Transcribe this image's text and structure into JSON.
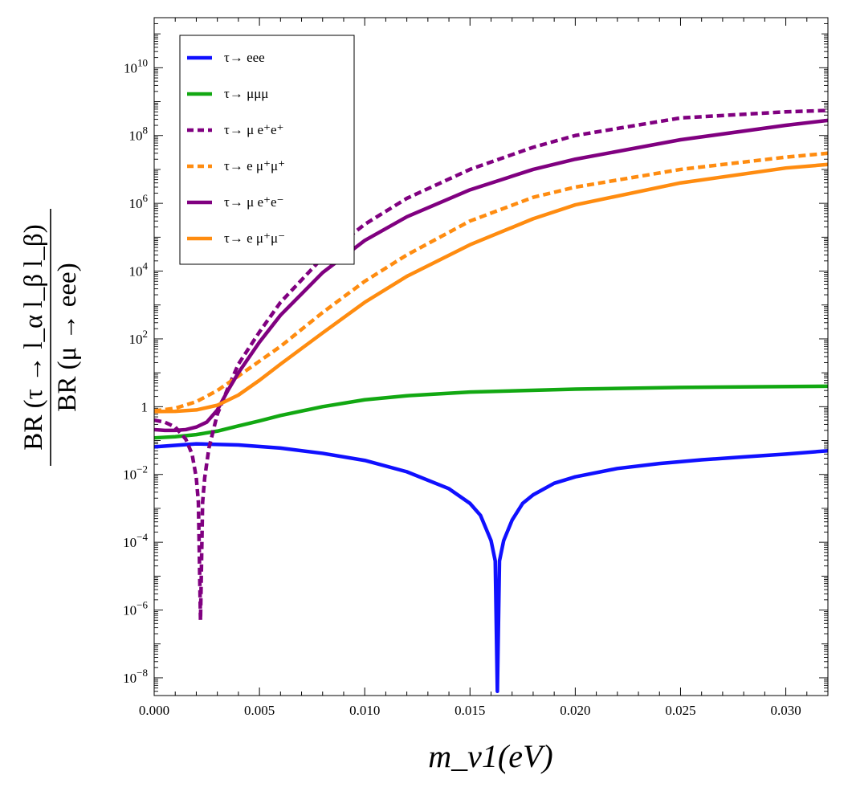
{
  "chart_data": {
    "type": "line",
    "xlabel": "m_ν1(eV)",
    "ylabel_numerator": "BR (τ → l_α l_β l_β)",
    "ylabel_denominator": "BR (μ → eee)",
    "xlim": [
      0,
      0.032
    ],
    "ylog": true,
    "ylim": [
      3e-09,
      300000000000.0
    ],
    "grid": false,
    "legend_position": "top-left",
    "x_ticks": [
      {
        "value": 0.0,
        "label": "0.000"
      },
      {
        "value": 0.005,
        "label": "0.005"
      },
      {
        "value": 0.01,
        "label": "0.010"
      },
      {
        "value": 0.015,
        "label": "0.015"
      },
      {
        "value": 0.02,
        "label": "0.020"
      },
      {
        "value": 0.025,
        "label": "0.025"
      },
      {
        "value": 0.03,
        "label": "0.030"
      }
    ],
    "y_ticks": [
      {
        "value": 1e-08,
        "base": "10",
        "exp": "−8"
      },
      {
        "value": 1e-06,
        "base": "10",
        "exp": "−6"
      },
      {
        "value": 0.0001,
        "base": "10",
        "exp": "−4"
      },
      {
        "value": 0.01,
        "base": "10",
        "exp": "−2"
      },
      {
        "value": 1,
        "base": "1",
        "exp": ""
      },
      {
        "value": 100.0,
        "base": "10",
        "exp": "2"
      },
      {
        "value": 10000.0,
        "base": "10",
        "exp": "4"
      },
      {
        "value": 1000000.0,
        "base": "10",
        "exp": "6"
      },
      {
        "value": 100000000.0,
        "base": "10",
        "exp": "8"
      },
      {
        "value": 10000000000.0,
        "base": "10",
        "exp": "10"
      }
    ],
    "series": [
      {
        "name": "τ→ eee",
        "color": "#1010ff",
        "dash": "solid",
        "x": [
          0,
          0.002,
          0.004,
          0.006,
          0.008,
          0.01,
          0.012,
          0.014,
          0.015,
          0.0155,
          0.016,
          0.0162,
          0.0163,
          0.0164,
          0.0166,
          0.017,
          0.0175,
          0.018,
          0.019,
          0.02,
          0.022,
          0.024,
          0.026,
          0.028,
          0.03,
          0.032
        ],
        "y": [
          0.065,
          0.08,
          0.074,
          0.06,
          0.042,
          0.026,
          0.012,
          0.0038,
          0.0014,
          0.00062,
          0.000112,
          2.8e-05,
          4e-09,
          2.8e-05,
          0.000112,
          0.00045,
          0.0014,
          0.0025,
          0.0055,
          0.0085,
          0.015,
          0.021,
          0.027,
          0.033,
          0.04,
          0.05
        ]
      },
      {
        "name": "τ→ μμμ",
        "color": "#12a812",
        "dash": "solid",
        "x": [
          0,
          0.001,
          0.002,
          0.003,
          0.004,
          0.005,
          0.006,
          0.008,
          0.01,
          0.012,
          0.015,
          0.02,
          0.025,
          0.032
        ],
        "y": [
          0.12,
          0.13,
          0.15,
          0.19,
          0.27,
          0.38,
          0.55,
          1.0,
          1.6,
          2.1,
          2.7,
          3.3,
          3.7,
          4.0
        ]
      },
      {
        "name": "τ→ μ e⁺e⁺",
        "color": "#800080",
        "dash": "dashed",
        "x": [
          0,
          0.0005,
          0.001,
          0.0015,
          0.0018,
          0.002,
          0.0021,
          0.0022,
          0.0023,
          0.0024,
          0.0026,
          0.003,
          0.0035,
          0.004,
          0.005,
          0.006,
          0.008,
          0.01,
          0.012,
          0.015,
          0.018,
          0.02,
          0.025,
          0.03,
          0.032
        ],
        "y": [
          0.4,
          0.35,
          0.25,
          0.11,
          0.04,
          0.008,
          0.0015,
          5e-07,
          0.0015,
          0.008,
          0.06,
          0.6,
          3.5,
          18,
          160,
          1200,
          25000,
          240000,
          1400000.0,
          10000000.0,
          45000000.0,
          100000000.0,
          330000000.0,
          500000000.0,
          550000000.0
        ]
      },
      {
        "name": "τ→ e μ⁺μ⁺",
        "color": "#ff8c10",
        "dash": "dashed",
        "x": [
          0,
          0.001,
          0.002,
          0.003,
          0.004,
          0.005,
          0.006,
          0.008,
          0.01,
          0.012,
          0.015,
          0.018,
          0.02,
          0.025,
          0.03,
          0.032
        ],
        "y": [
          0.75,
          0.9,
          1.4,
          3,
          8,
          22,
          60,
          600,
          5000,
          30000,
          300000,
          1500000.0,
          3000000.0,
          10000000.0,
          23000000.0,
          30000000.0
        ]
      },
      {
        "name": "τ→ μ e⁺e⁻",
        "color": "#800080",
        "dash": "solid",
        "x": [
          0,
          0.0005,
          0.001,
          0.0015,
          0.002,
          0.0025,
          0.003,
          0.0035,
          0.004,
          0.005,
          0.006,
          0.008,
          0.01,
          0.012,
          0.015,
          0.018,
          0.02,
          0.025,
          0.03,
          0.032
        ],
        "y": [
          0.21,
          0.2,
          0.2,
          0.21,
          0.25,
          0.35,
          0.8,
          3,
          10,
          80,
          500,
          9000,
          80000,
          400000,
          2500000.0,
          10000000.0,
          20000000.0,
          75000000.0,
          200000000.0,
          280000000.0
        ]
      },
      {
        "name": "τ→ e μ⁺μ⁻",
        "color": "#ff8c10",
        "dash": "solid",
        "x": [
          0,
          0.001,
          0.002,
          0.003,
          0.004,
          0.005,
          0.006,
          0.008,
          0.01,
          0.012,
          0.015,
          0.018,
          0.02,
          0.025,
          0.03,
          0.032
        ],
        "y": [
          0.72,
          0.73,
          0.8,
          1.1,
          2.2,
          6,
          18,
          150,
          1200,
          7000,
          60000,
          350000,
          900000,
          4000000.0,
          11000000.0,
          14000000.0
        ]
      }
    ]
  }
}
